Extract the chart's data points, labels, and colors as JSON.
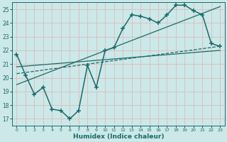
{
  "xlabel": "Humidex (Indice chaleur)",
  "bg_color": "#cce8e8",
  "grid_color": "#ddbbbb",
  "line_color": "#1a6b6b",
  "xlim": [
    -0.5,
    23.5
  ],
  "ylim": [
    16.5,
    25.5
  ],
  "yticks": [
    17,
    18,
    19,
    20,
    21,
    22,
    23,
    24,
    25
  ],
  "xticks": [
    0,
    1,
    2,
    3,
    4,
    5,
    6,
    7,
    8,
    9,
    10,
    11,
    12,
    13,
    14,
    15,
    16,
    17,
    18,
    19,
    20,
    21,
    22,
    23
  ],
  "main_x": [
    0,
    1,
    2,
    3,
    4,
    5,
    6,
    7,
    8,
    9,
    10,
    11,
    12,
    13,
    14,
    15,
    16,
    17,
    18,
    19,
    20,
    21,
    22,
    23
  ],
  "main_y": [
    21.7,
    20.2,
    18.8,
    19.3,
    17.7,
    17.6,
    17.0,
    17.6,
    20.9,
    19.3,
    22.0,
    22.2,
    23.6,
    24.6,
    24.5,
    24.3,
    24.0,
    24.6,
    25.3,
    25.3,
    24.9,
    24.6,
    22.5,
    22.3
  ],
  "trend1_x": [
    0,
    23
  ],
  "trend1_y": [
    20.3,
    22.3
  ],
  "trend2_x": [
    0,
    23
  ],
  "trend2_y": [
    19.5,
    25.2
  ],
  "trend3_x": [
    0,
    23
  ],
  "trend3_y": [
    20.8,
    22.0
  ]
}
